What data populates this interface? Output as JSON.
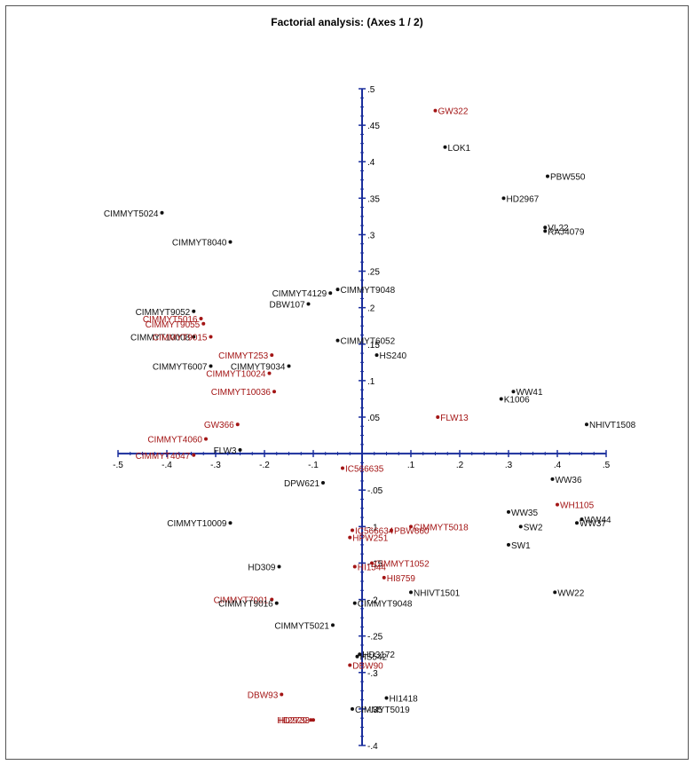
{
  "chart_data": {
    "type": "scatter",
    "title": "Factorial analysis: (Axes 1 / 2)",
    "xlabel": "",
    "ylabel": "",
    "xlim": [
      -0.5,
      0.5
    ],
    "ylim": [
      -0.4,
      0.5
    ],
    "x_ticks": [
      -0.5,
      -0.4,
      -0.3,
      -0.2,
      -0.1,
      0.1,
      0.2,
      0.3,
      0.4,
      0.5
    ],
    "x_tick_labels": [
      "-.5",
      "-.4",
      "-.3",
      "-.2",
      "-.1",
      ".1",
      ".2",
      ".3",
      ".4",
      ".5"
    ],
    "y_ticks": [
      0.5,
      0.45,
      0.4,
      0.35,
      0.3,
      0.25,
      0.2,
      0.15,
      0.1,
      0.05,
      -0.05,
      -0.1,
      -0.15,
      -0.2,
      -0.25,
      -0.3,
      -0.35,
      -0.4
    ],
    "y_tick_labels": [
      ".5",
      ".45",
      ".4",
      ".35",
      ".3",
      ".25",
      ".2",
      ".15",
      ".1",
      ".05",
      "-.05",
      "-.1",
      "-.15",
      "-.2",
      "-.25",
      "-.3",
      "-.35",
      "-.4"
    ],
    "colors": {
      "axis": "#1a2e9c",
      "black_group": "#111111",
      "red_group": "#a31515"
    },
    "points": [
      {
        "label": "GW322",
        "x": 0.15,
        "y": 0.47,
        "group": "red"
      },
      {
        "label": "LOK1",
        "x": 0.17,
        "y": 0.42,
        "group": "black"
      },
      {
        "label": "PBW550",
        "x": 0.38,
        "y": 0.38,
        "group": "black"
      },
      {
        "label": "HD2967",
        "x": 0.29,
        "y": 0.35,
        "group": "black"
      },
      {
        "label": "VL22",
        "x": 0.375,
        "y": 0.31,
        "group": "black"
      },
      {
        "label": "RAJ4079",
        "x": 0.375,
        "y": 0.305,
        "group": "black"
      },
      {
        "label": "CIMMYT5024",
        "x": -0.41,
        "y": 0.33,
        "group": "black"
      },
      {
        "label": "CIMMYT8040",
        "x": -0.27,
        "y": 0.29,
        "group": "black"
      },
      {
        "label": "CIMMYT9048",
        "x": -0.05,
        "y": 0.225,
        "group": "black"
      },
      {
        "label": "CIMMYT4129",
        "x": -0.065,
        "y": 0.22,
        "group": "black"
      },
      {
        "label": "DBW107",
        "x": -0.11,
        "y": 0.205,
        "group": "black"
      },
      {
        "label": "CIMMYT9052",
        "x": -0.345,
        "y": 0.195,
        "group": "black"
      },
      {
        "label": "CIMMYT5016",
        "x": -0.33,
        "y": 0.185,
        "group": "red"
      },
      {
        "label": "CIMMYT9055",
        "x": -0.325,
        "y": 0.178,
        "group": "red"
      },
      {
        "label": "CIMMYT10008",
        "x": -0.345,
        "y": 0.16,
        "group": "black"
      },
      {
        "label": "CIMMYT9015",
        "x": -0.31,
        "y": 0.16,
        "group": "red"
      },
      {
        "label": "CIMMYT6052",
        "x": -0.05,
        "y": 0.155,
        "group": "black"
      },
      {
        "label": "CIMMYT253",
        "x": -0.185,
        "y": 0.135,
        "group": "red"
      },
      {
        "label": "HS240",
        "x": 0.03,
        "y": 0.135,
        "group": "black"
      },
      {
        "label": "CIMMYT6007",
        "x": -0.31,
        "y": 0.12,
        "group": "black"
      },
      {
        "label": "CIMMYT9034",
        "x": -0.15,
        "y": 0.12,
        "group": "black"
      },
      {
        "label": "CIMMYT10024",
        "x": -0.19,
        "y": 0.11,
        "group": "red"
      },
      {
        "label": "CIMMYT10036",
        "x": -0.18,
        "y": 0.085,
        "group": "red"
      },
      {
        "label": "WW41",
        "x": 0.31,
        "y": 0.085,
        "group": "black"
      },
      {
        "label": "K1006",
        "x": 0.285,
        "y": 0.075,
        "group": "black"
      },
      {
        "label": "FLW13",
        "x": 0.155,
        "y": 0.05,
        "group": "red"
      },
      {
        "label": "NHIVT1508",
        "x": 0.46,
        "y": 0.04,
        "group": "black"
      },
      {
        "label": "GW366",
        "x": -0.255,
        "y": 0.04,
        "group": "red"
      },
      {
        "label": "CIMMYT4060",
        "x": -0.32,
        "y": 0.02,
        "group": "red"
      },
      {
        "label": "FLW3",
        "x": -0.25,
        "y": 0.005,
        "group": "black"
      },
      {
        "label": "CIMMYT4047",
        "x": -0.345,
        "y": -0.002,
        "group": "red"
      },
      {
        "label": "IC566635",
        "x": -0.04,
        "y": -0.02,
        "group": "red"
      },
      {
        "label": "DPW621",
        "x": -0.08,
        "y": -0.04,
        "group": "black"
      },
      {
        "label": "WW36",
        "x": 0.39,
        "y": -0.035,
        "group": "black"
      },
      {
        "label": "WW35",
        "x": 0.3,
        "y": -0.08,
        "group": "black"
      },
      {
        "label": "WH1105",
        "x": 0.4,
        "y": -0.07,
        "group": "red"
      },
      {
        "label": "WW44",
        "x": 0.45,
        "y": -0.09,
        "group": "black"
      },
      {
        "label": "WW37",
        "x": 0.44,
        "y": -0.095,
        "group": "black"
      },
      {
        "label": "SW2",
        "x": 0.325,
        "y": -0.1,
        "group": "black"
      },
      {
        "label": "SW1",
        "x": 0.3,
        "y": -0.125,
        "group": "black"
      },
      {
        "label": "CIMMYT10009",
        "x": -0.27,
        "y": -0.095,
        "group": "black"
      },
      {
        "label": "IC566634",
        "x": -0.02,
        "y": -0.105,
        "group": "red"
      },
      {
        "label": "HPW251",
        "x": -0.025,
        "y": -0.115,
        "group": "red"
      },
      {
        "label": "PBW660",
        "x": 0.06,
        "y": -0.105,
        "group": "red"
      },
      {
        "label": "CIMMYT5018",
        "x": 0.1,
        "y": -0.1,
        "group": "red"
      },
      {
        "label": "HD309",
        "x": -0.17,
        "y": -0.155,
        "group": "black"
      },
      {
        "label": "HI1544",
        "x": -0.015,
        "y": -0.155,
        "group": "red"
      },
      {
        "label": "CIMMYT1052",
        "x": 0.02,
        "y": -0.15,
        "group": "red"
      },
      {
        "label": "HI8759",
        "x": 0.045,
        "y": -0.17,
        "group": "red"
      },
      {
        "label": "NHIVT1501",
        "x": 0.1,
        "y": -0.19,
        "group": "black"
      },
      {
        "label": "WW22",
        "x": 0.395,
        "y": -0.19,
        "group": "black"
      },
      {
        "label": "CIMMYT7001",
        "x": -0.185,
        "y": -0.2,
        "group": "red"
      },
      {
        "label": "CIMMYT9016",
        "x": -0.175,
        "y": -0.205,
        "group": "black"
      },
      {
        "label": "CIMMYT9048",
        "x": -0.015,
        "y": -0.205,
        "group": "black"
      },
      {
        "label": "CIMMYT5021",
        "x": -0.06,
        "y": -0.235,
        "group": "black"
      },
      {
        "label": "HD3172",
        "x": -0.005,
        "y": -0.275,
        "group": "black"
      },
      {
        "label": "HS542",
        "x": -0.01,
        "y": -0.278,
        "group": "black"
      },
      {
        "label": "DBW90",
        "x": -0.025,
        "y": -0.29,
        "group": "red"
      },
      {
        "label": "DBW93",
        "x": -0.165,
        "y": -0.33,
        "group": "red"
      },
      {
        "label": "HI1418",
        "x": 0.05,
        "y": -0.335,
        "group": "black"
      },
      {
        "label": "CIMMYT5019",
        "x": -0.02,
        "y": -0.35,
        "group": "black"
      },
      {
        "label": "HD2733",
        "x": -0.1,
        "y": -0.365,
        "group": "red"
      },
      {
        "label": "HI2929",
        "x": -0.105,
        "y": -0.365,
        "group": "red"
      }
    ]
  }
}
